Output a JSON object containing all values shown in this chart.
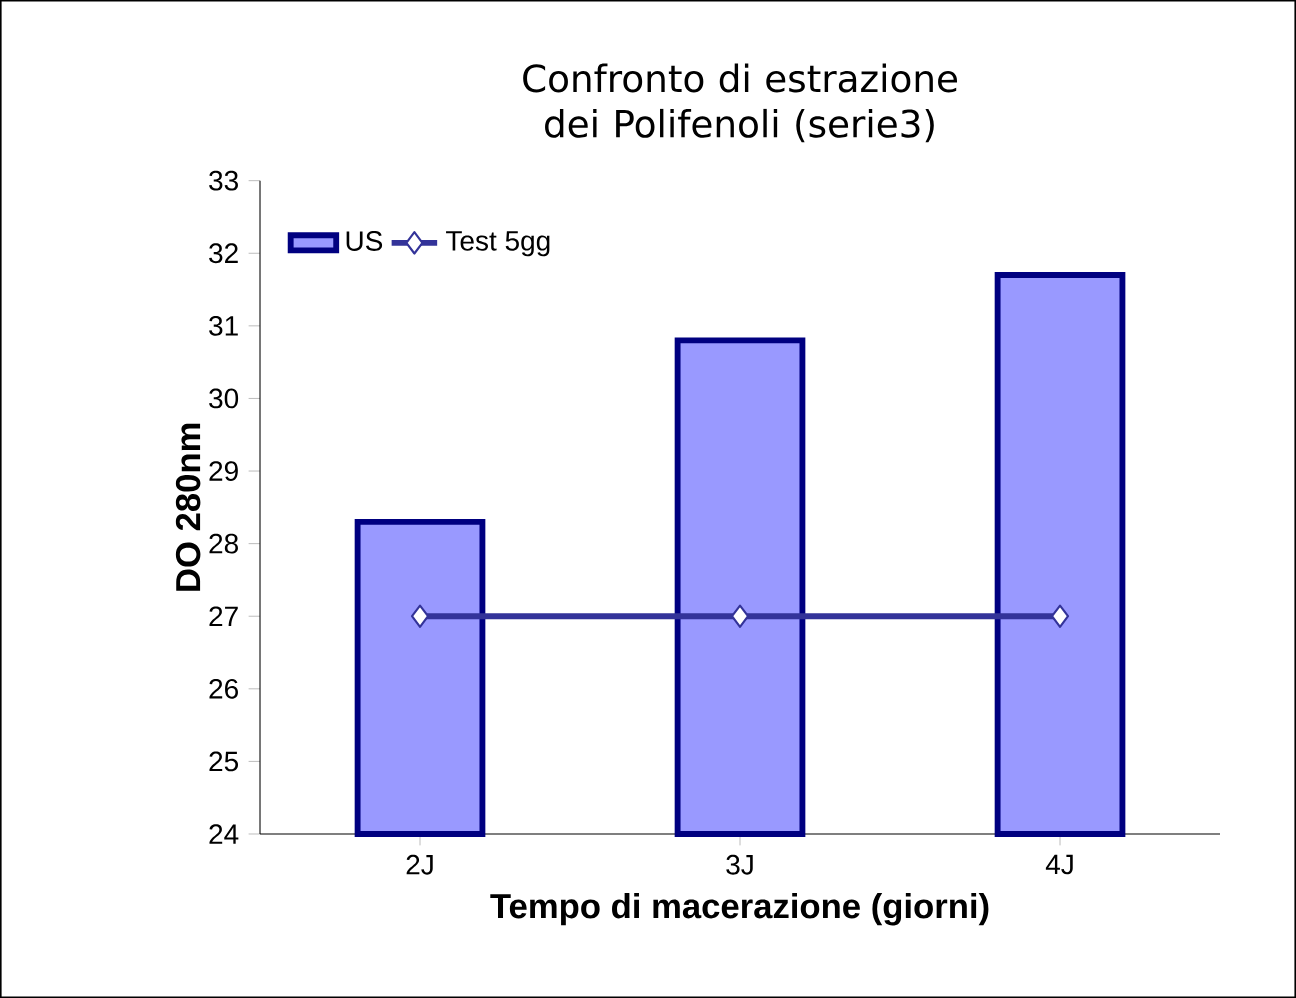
{
  "chart_data": {
    "type": "bar",
    "title": "Confronto di estrazione dei Polifenoli (serie3)",
    "xlabel": "Tempo di macerazione (giorni)",
    "ylabel": "DO 280nm",
    "categories": [
      "2J",
      "3J",
      "4J"
    ],
    "series": [
      {
        "name": "US",
        "color": "#9999ff",
        "values": [
          28.3,
          30.8,
          31.7
        ]
      },
      {
        "name": "Test 5gg",
        "type": "line",
        "color": "#333399",
        "marker": "diamond",
        "values": [
          27,
          27,
          27
        ]
      }
    ],
    "ylim": [
      24,
      33
    ],
    "yticks": [
      24,
      25,
      26,
      27,
      28,
      29,
      30,
      31,
      32,
      33
    ],
    "grid": false,
    "legend": "top left"
  }
}
